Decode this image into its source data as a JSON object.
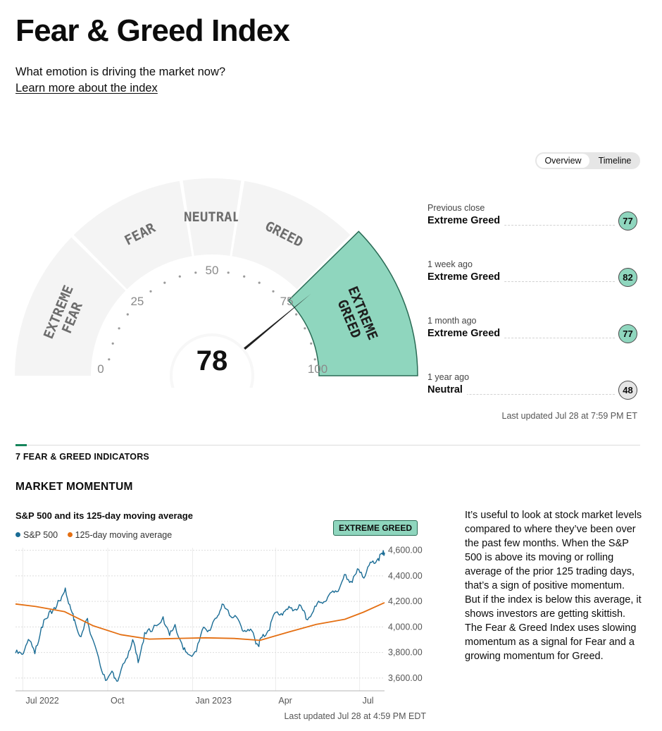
{
  "header": {
    "title": "Fear & Greed Index",
    "subtitle": "What emotion is driving the market now?",
    "learn_more": "Learn more about the index"
  },
  "view_toggle": {
    "options": [
      "Overview",
      "Timeline"
    ],
    "active": "Overview"
  },
  "gauge": {
    "value": 78,
    "rating": "Extreme Greed",
    "zones": [
      {
        "label": "EXTREME FEAR",
        "from": 0,
        "to": 25
      },
      {
        "label": "FEAR",
        "from": 25,
        "to": 45
      },
      {
        "label": "NEUTRAL",
        "from": 45,
        "to": 55
      },
      {
        "label": "GREED",
        "from": 55,
        "to": 75
      },
      {
        "label": "EXTREME GREED",
        "from": 75,
        "to": 100
      }
    ],
    "ticks": [
      "0",
      "25",
      "50",
      "75",
      "100"
    ],
    "colors": {
      "active_zone": "#8fd6be",
      "active_border": "#2a6b55",
      "inactive_zone": "#f4f4f4",
      "needle": "#1f1f1f"
    }
  },
  "history": [
    {
      "label": "Previous close",
      "rating": "Extreme Greed",
      "value": "77",
      "tone": "greed"
    },
    {
      "label": "1 week ago",
      "rating": "Extreme Greed",
      "value": "82",
      "tone": "greed"
    },
    {
      "label": "1 month ago",
      "rating": "Extreme Greed",
      "value": "77",
      "tone": "greed"
    },
    {
      "label": "1 year ago",
      "rating": "Neutral",
      "value": "48",
      "tone": "neutral"
    }
  ],
  "last_updated": "Last updated Jul 28 at 7:59 PM ET",
  "indicators_heading": "7 FEAR & GREED INDICATORS",
  "momentum": {
    "heading": "MARKET MOMENTUM",
    "chart_title": "S&P 500 and its 125-day moving average",
    "rating_badge": "EXTREME GREED",
    "last_updated": "Last updated Jul 28 at 4:59 PM EDT",
    "description": "It’s useful to look at stock market levels compared to where they’ve been over the past few months. When the S&P 500 is above its moving or rolling average of the prior 125 trading days, that’s a sign of positive momentum. But if the index is below this average, it shows investors are getting skittish. The Fear & Greed Index uses slowing momentum as a signal for Fear and a growing momentum for Greed."
  },
  "chart_data": {
    "type": "line",
    "x_ticks": [
      "Jul 2022",
      "Oct",
      "Jan 2023",
      "Apr",
      "Jul"
    ],
    "y_ticks": [
      "4,600.00",
      "4,400.00",
      "4,200.00",
      "4,000.00",
      "3,800.00",
      "3,600.00"
    ],
    "ylim": [
      3500,
      4620
    ],
    "xlim": [
      "2022-06-23",
      "2023-07-28"
    ],
    "grid": true,
    "legend_position": "top-left",
    "series": [
      {
        "name": "S&P 500",
        "color": "#1a6c95",
        "points": [
          [
            "2022-06-23",
            3795
          ],
          [
            "2022-06-30",
            3785
          ],
          [
            "2022-07-07",
            3902
          ],
          [
            "2022-07-14",
            3790
          ],
          [
            "2022-07-21",
            3998
          ],
          [
            "2022-07-28",
            4072
          ],
          [
            "2022-08-04",
            4152
          ],
          [
            "2022-08-11",
            4207
          ],
          [
            "2022-08-16",
            4305
          ],
          [
            "2022-08-22",
            4137
          ],
          [
            "2022-08-26",
            4057
          ],
          [
            "2022-09-02",
            3924
          ],
          [
            "2022-09-09",
            4067
          ],
          [
            "2022-09-13",
            3932
          ],
          [
            "2022-09-23",
            3693
          ],
          [
            "2022-09-30",
            3585
          ],
          [
            "2022-10-07",
            3639
          ],
          [
            "2022-10-12",
            3577
          ],
          [
            "2022-10-21",
            3752
          ],
          [
            "2022-10-28",
            3901
          ],
          [
            "2022-11-03",
            3720
          ],
          [
            "2022-11-10",
            3956
          ],
          [
            "2022-11-18",
            3965
          ],
          [
            "2022-11-30",
            4080
          ],
          [
            "2022-12-07",
            3933
          ],
          [
            "2022-12-13",
            4019
          ],
          [
            "2022-12-22",
            3822
          ],
          [
            "2022-12-28",
            3783
          ],
          [
            "2023-01-05",
            3808
          ],
          [
            "2023-01-13",
            3999
          ],
          [
            "2023-01-20",
            3972
          ],
          [
            "2023-01-27",
            4070
          ],
          [
            "2023-02-02",
            4179
          ],
          [
            "2023-02-10",
            4090
          ],
          [
            "2023-02-16",
            4090
          ],
          [
            "2023-02-24",
            3970
          ],
          [
            "2023-03-02",
            3981
          ],
          [
            "2023-03-09",
            3918
          ],
          [
            "2023-03-13",
            3855
          ],
          [
            "2023-03-17",
            3917
          ],
          [
            "2023-03-24",
            3971
          ],
          [
            "2023-03-31",
            4109
          ],
          [
            "2023-04-07",
            4105
          ],
          [
            "2023-04-14",
            4137
          ],
          [
            "2023-04-21",
            4133
          ],
          [
            "2023-04-28",
            4169
          ],
          [
            "2023-05-04",
            4061
          ],
          [
            "2023-05-12",
            4124
          ],
          [
            "2023-05-19",
            4191
          ],
          [
            "2023-05-26",
            4205
          ],
          [
            "2023-06-02",
            4282
          ],
          [
            "2023-06-09",
            4299
          ],
          [
            "2023-06-16",
            4409
          ],
          [
            "2023-06-23",
            4348
          ],
          [
            "2023-06-30",
            4450
          ],
          [
            "2023-07-07",
            4399
          ],
          [
            "2023-07-14",
            4505
          ],
          [
            "2023-07-21",
            4536
          ],
          [
            "2023-07-26",
            4567
          ],
          [
            "2023-07-28",
            4582
          ]
        ]
      },
      {
        "name": "125-day moving average",
        "color": "#e46f12",
        "points": [
          [
            "2022-06-23",
            4180
          ],
          [
            "2022-07-15",
            4160
          ],
          [
            "2022-08-15",
            4120
          ],
          [
            "2022-09-15",
            4010
          ],
          [
            "2022-10-15",
            3940
          ],
          [
            "2022-11-15",
            3905
          ],
          [
            "2022-12-15",
            3910
          ],
          [
            "2023-01-15",
            3915
          ],
          [
            "2023-02-15",
            3910
          ],
          [
            "2023-03-15",
            3895
          ],
          [
            "2023-04-15",
            3960
          ],
          [
            "2023-05-15",
            4020
          ],
          [
            "2023-06-15",
            4060
          ],
          [
            "2023-07-05",
            4115
          ],
          [
            "2023-07-28",
            4190
          ]
        ]
      }
    ]
  }
}
